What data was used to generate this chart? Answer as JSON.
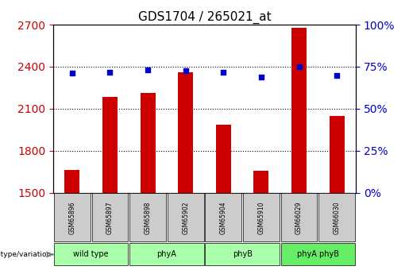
{
  "title": "GDS1704 / 265021_at",
  "samples": [
    "GSM65896",
    "GSM65897",
    "GSM65898",
    "GSM65902",
    "GSM65904",
    "GSM65910",
    "GSM66029",
    "GSM66030"
  ],
  "groups": [
    {
      "label": "wild type",
      "color": "#ccffcc",
      "indices": [
        0,
        1
      ]
    },
    {
      "label": "phyA",
      "color": "#ccffcc",
      "indices": [
        2,
        3
      ]
    },
    {
      "label": "phyB",
      "color": "#ccffcc",
      "indices": [
        4,
        5
      ]
    },
    {
      "label": "phyA phyB",
      "color": "#66ff66",
      "indices": [
        6,
        7
      ]
    }
  ],
  "counts": [
    1665,
    2185,
    2215,
    2360,
    1985,
    1660,
    2680,
    2050
  ],
  "percentile_ranks": [
    71,
    71.5,
    73,
    72.5,
    71.5,
    69,
    75,
    70
  ],
  "ylim_left": [
    1500,
    2700
  ],
  "ylim_right": [
    0,
    100
  ],
  "yticks_left": [
    1500,
    1800,
    2100,
    2400,
    2700
  ],
  "yticks_right": [
    0,
    25,
    50,
    75,
    100
  ],
  "bar_color": "#cc0000",
  "dot_color": "#0000cc",
  "grid_color": "#000000",
  "label_color_left": "#cc0000",
  "label_color_right": "#0000cc",
  "bg_color": "#ffffff",
  "tick_label_bg": "#cccccc",
  "group_label": "genotype/variation"
}
